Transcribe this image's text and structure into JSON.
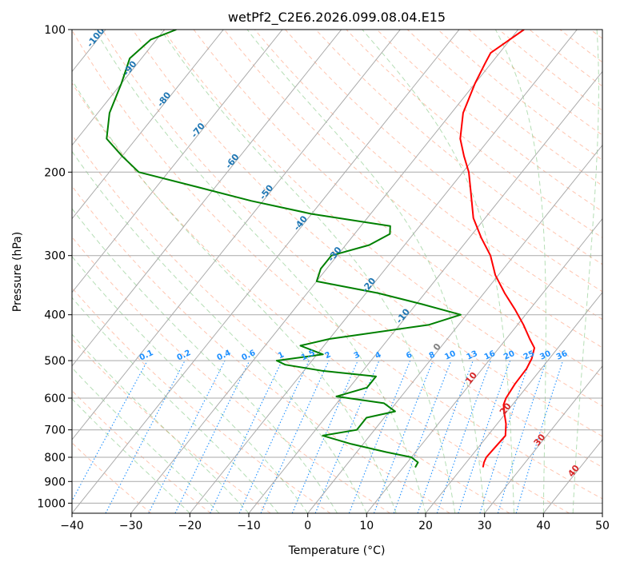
{
  "chart_data": {
    "type": "line",
    "title": "wetPf2_C2E6.2026.099.08.04.E15",
    "xlabel": "Temperature (°C)",
    "ylabel": "Pressure (hPa)",
    "xlim": [
      -40,
      50
    ],
    "ylim": [
      1050,
      100
    ],
    "y_scale": "log",
    "grid": true,
    "x_ticks": [
      -40,
      -30,
      -20,
      -10,
      0,
      10,
      20,
      30,
      40,
      50
    ],
    "y_ticks": [
      100,
      200,
      300,
      400,
      500,
      600,
      700,
      800,
      900,
      1000
    ],
    "colors": {
      "temperature": "#ff0000",
      "dewpoint": "#008000",
      "isotherm": "#a9a9a9",
      "dry_adiabat": "#ff7f50",
      "moist_adiabat": "#2ca02c",
      "mixing_ratio": "#1e90ff",
      "isotherm_label_warm": "#d62728",
      "isotherm_label_cold": "#1f77b4",
      "zero_isotherm_label": "#808080",
      "frame": "#000000"
    },
    "series": [
      {
        "key": "temperature",
        "p": [
          840,
          820,
          800,
          770,
          720,
          680,
          650,
          620,
          600,
          560,
          520,
          495,
          470,
          450,
          420,
          390,
          360,
          330,
          300,
          275,
          250,
          220,
          200,
          185,
          170,
          150,
          130,
          118,
          112,
          100
        ],
        "t": [
          23.5,
          23,
          22.7,
          22.8,
          23,
          21.5,
          20,
          18.5,
          18,
          17.6,
          17.5,
          17,
          16,
          14,
          11,
          7.5,
          3.5,
          -0.5,
          -4,
          -8,
          -12,
          -16,
          -19,
          -22,
          -25,
          -28,
          -30,
          -31,
          -31.5,
          -29
        ]
      },
      {
        "key": "dewpoint",
        "p": [
          840,
          820,
          800,
          780,
          750,
          720,
          700,
          660,
          640,
          615,
          595,
          570,
          555,
          540,
          525,
          510,
          500,
          485,
          465,
          450,
          420,
          400,
          380,
          360,
          340,
          320,
          300,
          285,
          270,
          260,
          245,
          230,
          215,
          200,
          185,
          170,
          150,
          130,
          115,
          105,
          100
        ],
        "t": [
          12,
          11.8,
          10,
          5,
          -2,
          -8,
          -3,
          -3,
          1,
          -2,
          -11,
          -7,
          -7,
          -7,
          -17,
          -24,
          -26,
          -19,
          -24,
          -20,
          -5,
          -1,
          -9,
          -18,
          -30,
          -31,
          -31,
          -26,
          -24,
          -25,
          -40,
          -52,
          -63,
          -75,
          -80,
          -85,
          -88,
          -90,
          -92,
          -91,
          -88
        ]
      }
    ],
    "isotherm_labels": {
      "cold": [
        -100,
        -90,
        -80,
        -70,
        -60,
        -50,
        -40,
        -30,
        -20,
        -10
      ],
      "zero": 0,
      "warm": [
        10,
        20,
        30,
        40
      ]
    },
    "mixing_ratio_labels": [
      "0.1",
      "0.2",
      "0.4",
      "0.6",
      "1",
      "1.5",
      "2",
      "3",
      "4",
      "6",
      "8",
      "10",
      "13",
      "16",
      "20",
      "25",
      "30",
      "36"
    ]
  }
}
